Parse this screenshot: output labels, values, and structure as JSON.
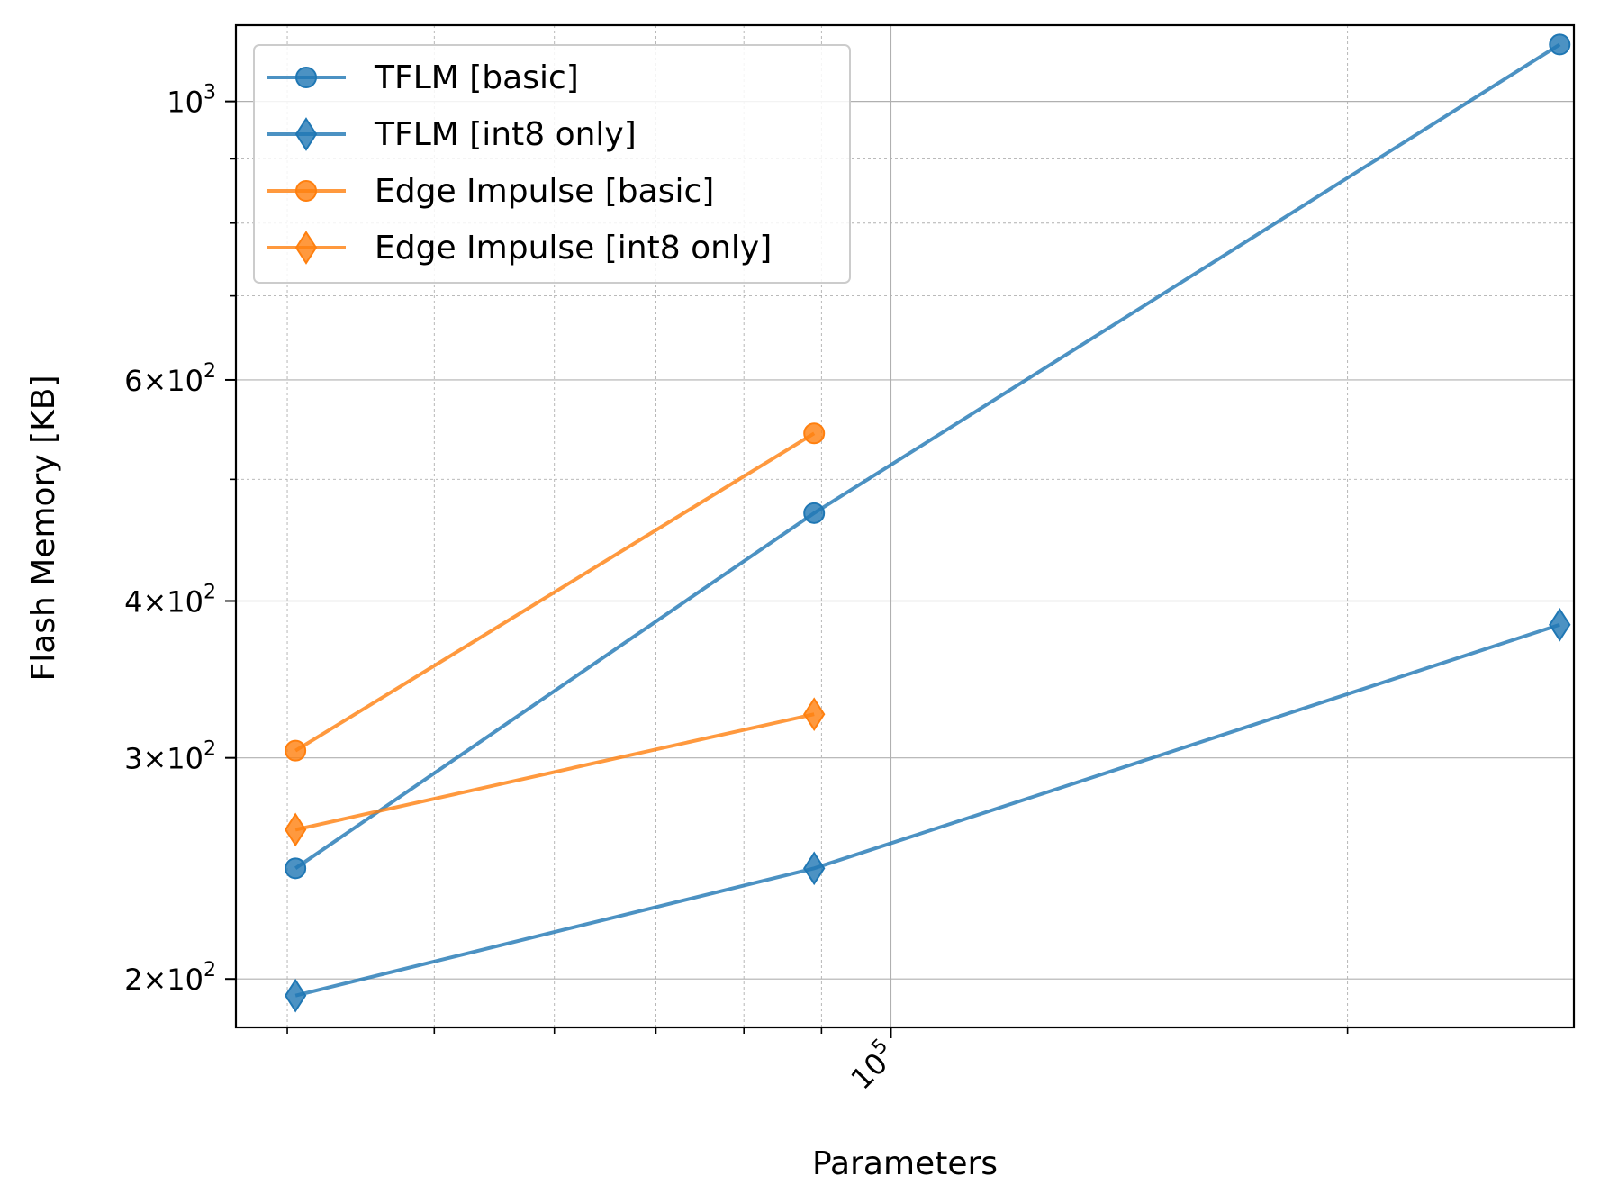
{
  "chart_data": {
    "type": "line",
    "xlabel": "Parameters",
    "ylabel": "Flash Memory [KB]",
    "x_scale": "log",
    "y_scale": "log",
    "xlim": [
      37000,
      282000
    ],
    "ylim": [
      183,
      1150
    ],
    "y_major_ticks": [
      {
        "value": 200,
        "label_mant": "2×10",
        "label_exp": "2"
      },
      {
        "value": 300,
        "label_mant": "3×10",
        "label_exp": "2"
      },
      {
        "value": 400,
        "label_mant": "4×10",
        "label_exp": "2"
      },
      {
        "value": 600,
        "label_mant": "6×10",
        "label_exp": "2"
      },
      {
        "value": 1000,
        "label_mant": "10",
        "label_exp": "3"
      }
    ],
    "y_minor_ticks": [
      500,
      700,
      800,
      900
    ],
    "x_major_ticks": [
      {
        "value": 100000,
        "label_mant": "10",
        "label_exp": "5"
      }
    ],
    "x_minor_ticks": [
      40000,
      50000,
      60000,
      70000,
      80000,
      90000,
      200000
    ],
    "grid": true,
    "legend_position": "top-left",
    "series": [
      {
        "name": "TFLM [basic]",
        "color": "#1f77b4",
        "marker": "circle",
        "x": [
          40500,
          89000,
          276000
        ],
        "y": [
          245,
          470,
          1110
        ]
      },
      {
        "name": "TFLM [int8 only]",
        "color": "#1f77b4",
        "marker": "diamond",
        "x": [
          40500,
          89000,
          276000
        ],
        "y": [
          194,
          245,
          383
        ]
      },
      {
        "name": "Edge Impulse [basic]",
        "color": "#ff7f0e",
        "marker": "circle",
        "x": [
          40500,
          89000
        ],
        "y": [
          304,
          544
        ]
      },
      {
        "name": "Edge Impulse [int8 only]",
        "color": "#ff7f0e",
        "marker": "diamond",
        "x": [
          40500,
          89000
        ],
        "y": [
          263,
          325
        ]
      }
    ]
  }
}
